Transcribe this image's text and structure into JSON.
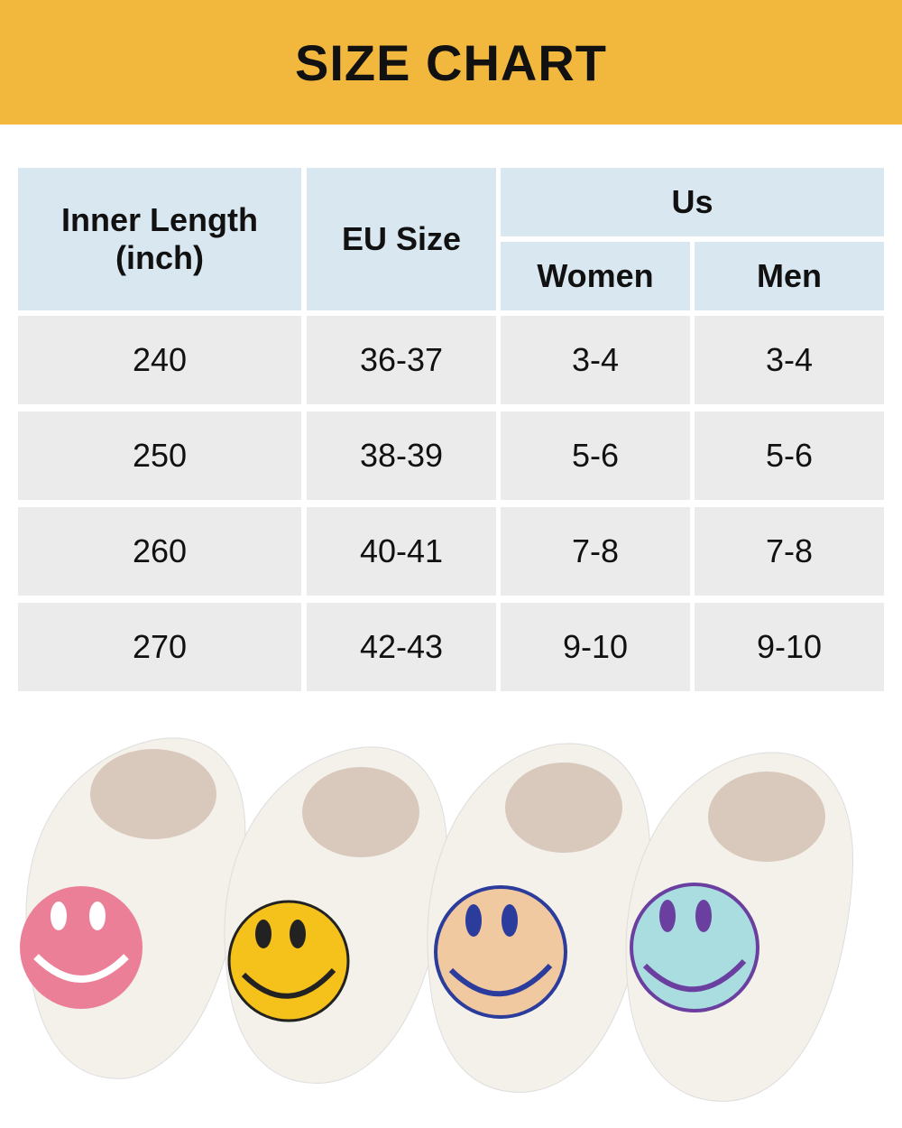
{
  "header": {
    "title": "SIZE CHART"
  },
  "table": {
    "columns": [
      "Inner Length (inch)",
      "EU Size",
      "Us",
      "Women",
      "Men"
    ],
    "rows": [
      [
        "240",
        "36-37",
        "3-4",
        "3-4"
      ],
      [
        "250",
        "38-39",
        "5-6",
        "5-6"
      ],
      [
        "260",
        "40-41",
        "7-8",
        "7-8"
      ],
      [
        "270",
        "42-43",
        "9-10",
        "9-10"
      ]
    ]
  }
}
